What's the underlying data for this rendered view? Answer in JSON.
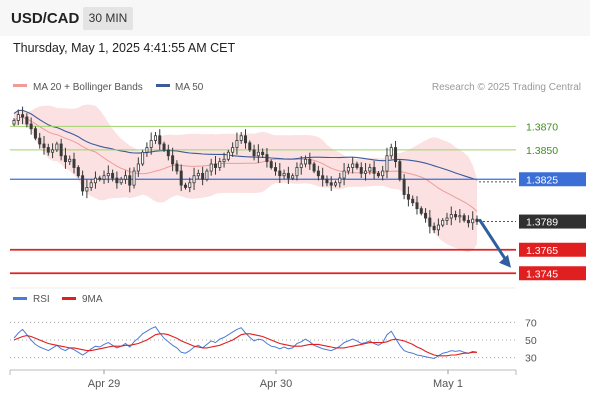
{
  "header": {
    "symbol": "USD/CAD",
    "timeframe": "30 MIN"
  },
  "timestamp": "Thursday, May 1, 2025 4:41:55 AM CET",
  "legend": {
    "ma_bb_label": "MA 20 + Bollinger Bands",
    "ma50_label": "MA 50",
    "credit": "Research © 2025 Trading Central"
  },
  "rsi_legend": {
    "rsi_label": "RSI",
    "ma_label": "9MA"
  },
  "colors": {
    "ma20": "#f19a9a",
    "bollinger_fill": "#fbdede",
    "ma50": "#3d5a99",
    "candle": "#3a3a3a",
    "resistance": "#9ed36a",
    "pivot": "#3b6fd6",
    "support": "#e02020",
    "current_price": "#303030",
    "forecast_arrow": "#2f5f9e",
    "rsi_line": "#4a7bd8",
    "rsi_ma": "#e02020"
  },
  "chart_data": [
    {
      "type": "candlestick",
      "x_tick_labels": [
        "Apr 29",
        "Apr 30",
        "May 1"
      ],
      "ylim": [
        1.3735,
        1.3895
      ],
      "levels": [
        {
          "label": "1.3870",
          "value": 1.387,
          "kind": "resistance"
        },
        {
          "label": "1.3850",
          "value": 1.385,
          "kind": "resistance"
        },
        {
          "label": "1.3825",
          "value": 1.3825,
          "kind": "pivot"
        },
        {
          "label": "1.3789",
          "value": 1.3789,
          "kind": "current"
        },
        {
          "label": "1.3765",
          "value": 1.3765,
          "kind": "support"
        },
        {
          "label": "1.3745",
          "value": 1.3745,
          "kind": "support"
        }
      ],
      "forecast": {
        "from": 1.379,
        "to": 1.3748,
        "direction": "down"
      },
      "series": [
        {
          "name": "MA 20 + Bollinger Bands"
        },
        {
          "name": "MA 50"
        }
      ],
      "closes": [
        1.3875,
        1.388,
        1.3878,
        1.3872,
        1.3868,
        1.386,
        1.3855,
        1.3852,
        1.3848,
        1.385,
        1.3855,
        1.3845,
        1.384,
        1.3842,
        1.3835,
        1.3828,
        1.3815,
        1.3818,
        1.3822,
        1.3826,
        1.3825,
        1.3828,
        1.383,
        1.3826,
        1.3822,
        1.3825,
        1.3828,
        1.382,
        1.3832,
        1.3838,
        1.3848,
        1.3852,
        1.3858,
        1.3862,
        1.3855,
        1.385,
        1.3845,
        1.3838,
        1.3832,
        1.382,
        1.3818,
        1.3822,
        1.3828,
        1.383,
        1.3825,
        1.3832,
        1.3838,
        1.3835,
        1.384,
        1.3842,
        1.3848,
        1.3852,
        1.3858,
        1.3862,
        1.3856,
        1.385,
        1.3845,
        1.3848,
        1.3846,
        1.384,
        1.3835,
        1.3832,
        1.3828,
        1.383,
        1.3826,
        1.3828,
        1.3835,
        1.3838,
        1.3842,
        1.3838,
        1.3832,
        1.3828,
        1.3825,
        1.3822,
        1.382,
        1.3822,
        1.3826,
        1.3832,
        1.3835,
        1.3838,
        1.3835,
        1.383,
        1.3832,
        1.3835,
        1.383,
        1.3828,
        1.3832,
        1.3845,
        1.3852,
        1.384,
        1.3825,
        1.3812,
        1.3808,
        1.3805,
        1.38,
        1.3796,
        1.3792,
        1.3785,
        1.3782,
        1.3786,
        1.379,
        1.3792,
        1.3795,
        1.3793,
        1.3794,
        1.379,
        1.3788,
        1.3791,
        1.3789
      ],
      "rsi": {
        "levels": [
          70,
          50,
          30
        ],
        "values": [
          52,
          58,
          62,
          56,
          50,
          45,
          42,
          40,
          38,
          41,
          44,
          40,
          38,
          41,
          39,
          36,
          33,
          36,
          40,
          43,
          42,
          45,
          47,
          44,
          41,
          43,
          46,
          42,
          48,
          52,
          57,
          60,
          63,
          65,
          58,
          52,
          48,
          44,
          41,
          36,
          35,
          38,
          42,
          44,
          41,
          45,
          49,
          47,
          51,
          53,
          56,
          59,
          62,
          64,
          58,
          53,
          49,
          51,
          50,
          46,
          43,
          42,
          40,
          42,
          40,
          41,
          46,
          48,
          51,
          48,
          44,
          42,
          40,
          39,
          38,
          40,
          43,
          47,
          49,
          51,
          49,
          46,
          47,
          49,
          46,
          44,
          47,
          56,
          60,
          52,
          44,
          38,
          36,
          35,
          33,
          32,
          31,
          30,
          29,
          32,
          35,
          36,
          38,
          37,
          38,
          36,
          35,
          37,
          36
        ],
        "ma_values": [
          50,
          52,
          54,
          55,
          54,
          52,
          50,
          48,
          46,
          45,
          44,
          43,
          42,
          41,
          41,
          40,
          39,
          38,
          38,
          39,
          40,
          41,
          42,
          43,
          43,
          43,
          44,
          44,
          45,
          46,
          48,
          50,
          53,
          56,
          57,
          57,
          56,
          54,
          52,
          49,
          47,
          45,
          43,
          42,
          41,
          41,
          42,
          43,
          44,
          46,
          48,
          50,
          53,
          56,
          57,
          57,
          56,
          55,
          54,
          52,
          50,
          48,
          46,
          45,
          44,
          43,
          43,
          43,
          44,
          45,
          45,
          45,
          44,
          43,
          42,
          41,
          41,
          41,
          42,
          43,
          44,
          45,
          46,
          47,
          47,
          47,
          47,
          48,
          50,
          51,
          50,
          49,
          47,
          45,
          42,
          40,
          37,
          35,
          33,
          32,
          32,
          32,
          33,
          33,
          34,
          35,
          35,
          36,
          36
        ]
      }
    }
  ]
}
